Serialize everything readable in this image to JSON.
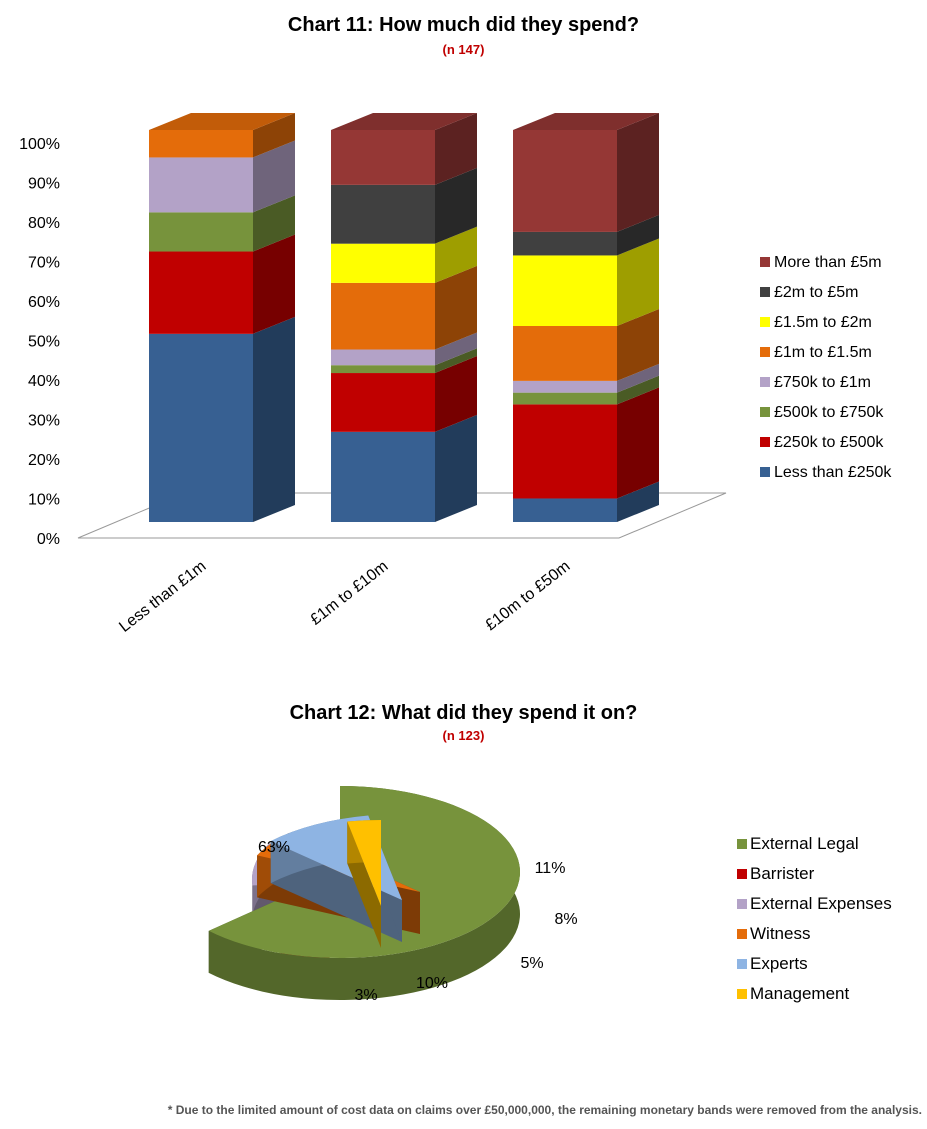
{
  "chart11": {
    "title": "Chart 11: How much did they spend?",
    "subtitle": "(n 147)"
  },
  "chart12": {
    "title": "Chart 12: What did they spend it on?",
    "subtitle": "(n 123)"
  },
  "footnote": "* Due to the limited amount of cost data on claims over £50,000,000, the remaining monetary bands were removed from the analysis.",
  "chart_data": [
    {
      "type": "bar",
      "stacked": true,
      "three_d": true,
      "title": "Chart 11: How much did they spend?",
      "subtitle": "(n 147)",
      "categories": [
        "Less than £1m",
        "£1m to £10m",
        "£10m to £50m"
      ],
      "ylim": [
        0,
        100
      ],
      "yticks": [
        "0%",
        "10%",
        "20%",
        "30%",
        "40%",
        "50%",
        "60%",
        "70%",
        "80%",
        "90%",
        "100%"
      ],
      "legend_position": "right",
      "series": [
        {
          "name": "Less than £250k",
          "color": "#376092",
          "values": [
            48,
            23,
            6
          ]
        },
        {
          "name": "£250k to £500k",
          "color": "#c00000",
          "values": [
            21,
            15,
            24
          ]
        },
        {
          "name": "£500k to £750k",
          "color": "#77933c",
          "values": [
            10,
            2,
            3
          ]
        },
        {
          "name": "£750k to £1m",
          "color": "#b3a2c7",
          "values": [
            14,
            4,
            3
          ]
        },
        {
          "name": "£1m to £1.5m",
          "color": "#e46c0a",
          "values": [
            7,
            17,
            14
          ]
        },
        {
          "name": "£1.5m to £2m",
          "color": "#ffff00",
          "values": [
            0,
            10,
            18
          ]
        },
        {
          "name": "£2m to £5m",
          "color": "#404040",
          "values": [
            0,
            15,
            6
          ]
        },
        {
          "name": "More than £5m",
          "color": "#953735",
          "values": [
            0,
            14,
            26
          ]
        }
      ]
    },
    {
      "type": "pie",
      "three_d": true,
      "exploded": true,
      "title": "Chart 12: What did they spend it on?",
      "subtitle": "(n 123)",
      "legend_position": "right",
      "slices": [
        {
          "name": "External Legal",
          "value": 63,
          "label": "63%",
          "color": "#77933c"
        },
        {
          "name": "Barrister",
          "value": 11,
          "label": "11%",
          "color": "#c00000"
        },
        {
          "name": "External Expenses",
          "value": 8,
          "label": "8%",
          "color": "#b3a2c7"
        },
        {
          "name": "Witness",
          "value": 5,
          "label": "5%",
          "color": "#e46c0a"
        },
        {
          "name": "Experts",
          "value": 10,
          "label": "10%",
          "color": "#8eb4e3"
        },
        {
          "name": "Management",
          "value": 3,
          "label": "3%",
          "color": "#ffc000"
        }
      ]
    }
  ]
}
